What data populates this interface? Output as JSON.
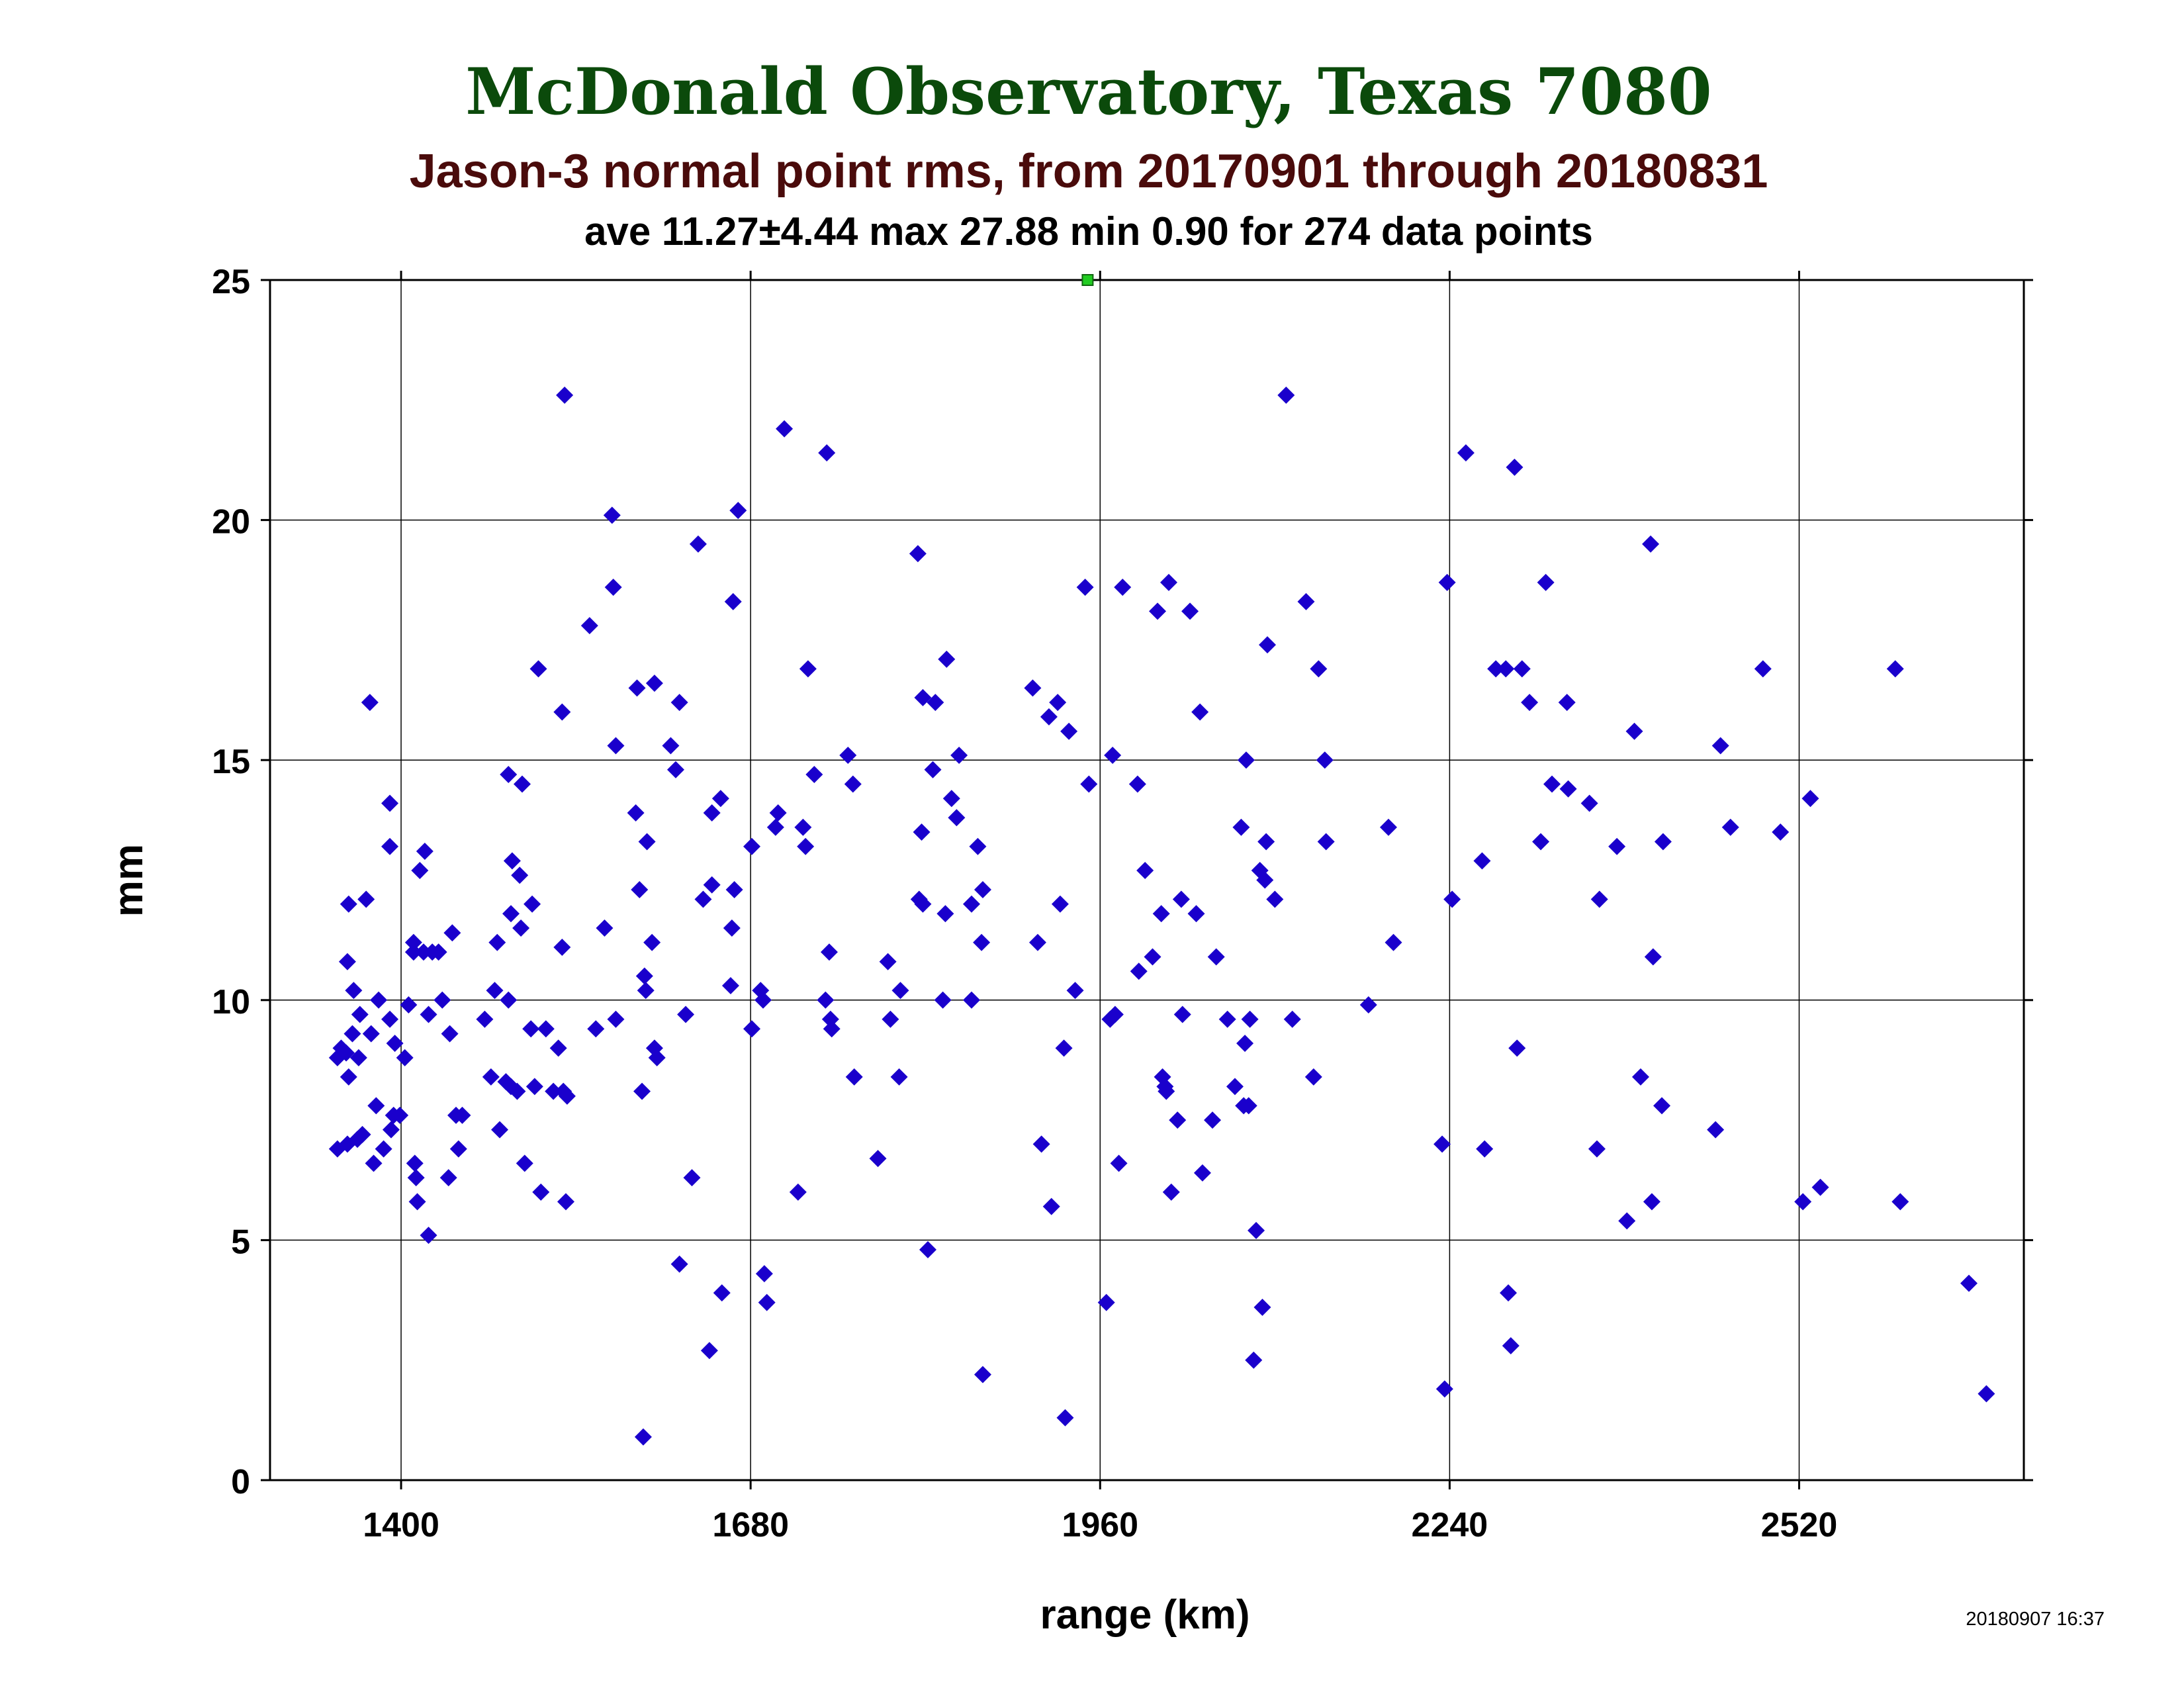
{
  "colors": {
    "title": "#0b4a0b",
    "subtitle": "#4a0b0b",
    "text": "#000000",
    "points": "#1a00cc",
    "outlier": "#22cc22",
    "grid": "#000000"
  },
  "chart_data": {
    "type": "scatter",
    "title": "McDonald Observatory, Texas 7080",
    "subtitle": "Jason-3 normal point rms, from 20170901 through 20180831",
    "stats_line": "ave 11.27±4.44 max 27.88 min 0.90 for 274 data points",
    "xlabel": "range (km)",
    "ylabel": "mm",
    "timestamp": "20180907 16:37",
    "xlim": [
      1295,
      2700
    ],
    "ylim": [
      0,
      25
    ],
    "x_ticks": [
      1400,
      1680,
      1960,
      2240,
      2520
    ],
    "y_ticks": [
      0,
      5,
      10,
      15,
      20,
      25
    ],
    "grid": true,
    "marker": "diamond",
    "outliers": [
      {
        "x": 1950,
        "y": 25
      }
    ],
    "series": [
      {
        "points": [
          [
            1349,
            6.9
          ],
          [
            1349,
            8.8
          ],
          [
            1352,
            9.0
          ],
          [
            1356,
            8.9
          ],
          [
            1357,
            7.0
          ],
          [
            1357,
            10.8
          ],
          [
            1358,
            12.0
          ],
          [
            1358,
            8.4
          ],
          [
            1361,
            9.3
          ],
          [
            1362,
            10.2
          ],
          [
            1365,
            7.1
          ],
          [
            1366,
            8.8
          ],
          [
            1367,
            9.7
          ],
          [
            1369,
            7.2
          ],
          [
            1372,
            12.1
          ],
          [
            1375,
            16.2
          ],
          [
            1376,
            9.3
          ],
          [
            1378,
            6.6
          ],
          [
            1380,
            7.8
          ],
          [
            1382,
            10.0
          ],
          [
            1386,
            6.9
          ],
          [
            1391,
            9.6
          ],
          [
            1391,
            14.1
          ],
          [
            1391,
            13.2
          ],
          [
            1392,
            7.3
          ],
          [
            1394,
            7.6
          ],
          [
            1395,
            9.1
          ],
          [
            1399,
            7.6
          ],
          [
            1403,
            8.8
          ],
          [
            1406,
            9.9
          ],
          [
            1410,
            11.0
          ],
          [
            1410,
            11.2
          ],
          [
            1411,
            6.6
          ],
          [
            1412,
            6.3
          ],
          [
            1413,
            5.8
          ],
          [
            1415,
            12.7
          ],
          [
            1418,
            11.0
          ],
          [
            1419,
            13.1
          ],
          [
            1422,
            5.1
          ],
          [
            1422,
            9.7
          ],
          [
            1425,
            11.0
          ],
          [
            1430,
            11.0
          ],
          [
            1433,
            10.0
          ],
          [
            1438,
            6.3
          ],
          [
            1439,
            9.3
          ],
          [
            1441,
            11.4
          ],
          [
            1444,
            7.6
          ],
          [
            1446,
            6.9
          ],
          [
            1449,
            7.6
          ],
          [
            1467,
            9.6
          ],
          [
            1472,
            8.4
          ],
          [
            1475,
            10.2
          ],
          [
            1477,
            11.2
          ],
          [
            1479,
            7.3
          ],
          [
            1484,
            8.3
          ],
          [
            1486,
            10.0
          ],
          [
            1486,
            14.7
          ],
          [
            1488,
            11.8
          ],
          [
            1488,
            8.2
          ],
          [
            1489,
            12.9
          ],
          [
            1493,
            8.1
          ],
          [
            1495,
            12.6
          ],
          [
            1496,
            11.5
          ],
          [
            1497,
            14.5
          ],
          [
            1499,
            6.6
          ],
          [
            1504,
            9.4
          ],
          [
            1505,
            12.0
          ],
          [
            1507,
            8.2
          ],
          [
            1510,
            16.9
          ],
          [
            1512,
            6.0
          ],
          [
            1516,
            9.4
          ],
          [
            1522,
            8.1
          ],
          [
            1526,
            9.0
          ],
          [
            1529,
            16.0
          ],
          [
            1529,
            11.1
          ],
          [
            1530,
            8.1
          ],
          [
            1531,
            22.6
          ],
          [
            1532,
            5.8
          ],
          [
            1533,
            8.0
          ],
          [
            1551,
            17.8
          ],
          [
            1556,
            9.4
          ],
          [
            1563,
            11.5
          ],
          [
            1569,
            20.1
          ],
          [
            1570,
            18.6
          ],
          [
            1572,
            15.3
          ],
          [
            1572,
            9.6
          ],
          [
            1588,
            13.9
          ],
          [
            1589,
            16.5
          ],
          [
            1591,
            12.3
          ],
          [
            1593,
            8.1
          ],
          [
            1594,
            0.9
          ],
          [
            1595,
            10.5
          ],
          [
            1596,
            10.2
          ],
          [
            1597,
            13.3
          ],
          [
            1601,
            11.2
          ],
          [
            1603,
            16.6
          ],
          [
            1603,
            9.0
          ],
          [
            1605,
            8.8
          ],
          [
            1616,
            15.3
          ],
          [
            1620,
            14.8
          ],
          [
            1623,
            16.2
          ],
          [
            1623,
            4.5
          ],
          [
            1628,
            9.7
          ],
          [
            1633,
            6.3
          ],
          [
            1638,
            19.5
          ],
          [
            1642,
            12.1
          ],
          [
            1647,
            2.7
          ],
          [
            1649,
            12.4
          ],
          [
            1649,
            13.9
          ],
          [
            1656,
            14.2
          ],
          [
            1657,
            3.9
          ],
          [
            1664,
            10.3
          ],
          [
            1665,
            11.5
          ],
          [
            1666,
            18.3
          ],
          [
            1667,
            12.3
          ],
          [
            1670,
            20.2
          ],
          [
            1681,
            9.4
          ],
          [
            1681,
            13.2
          ],
          [
            1688,
            10.2
          ],
          [
            1690,
            10.0
          ],
          [
            1691,
            4.3
          ],
          [
            1693,
            3.7
          ],
          [
            1700,
            13.6
          ],
          [
            1702,
            13.9
          ],
          [
            1707,
            21.9
          ],
          [
            1718,
            6.0
          ],
          [
            1722,
            13.6
          ],
          [
            1724,
            13.2
          ],
          [
            1726,
            16.9
          ],
          [
            1731,
            14.7
          ],
          [
            1740,
            10.0
          ],
          [
            1741,
            21.4
          ],
          [
            1743,
            11.0
          ],
          [
            1744,
            9.6
          ],
          [
            1745,
            9.4
          ],
          [
            1758,
            15.1
          ],
          [
            1762,
            14.5
          ],
          [
            1763,
            8.4
          ],
          [
            1782,
            6.7
          ],
          [
            1790,
            10.8
          ],
          [
            1792,
            9.6
          ],
          [
            1799,
            8.4
          ],
          [
            1800,
            10.2
          ],
          [
            1814,
            19.3
          ],
          [
            1815,
            12.1
          ],
          [
            1817,
            13.5
          ],
          [
            1818,
            16.3
          ],
          [
            1818,
            12.0
          ],
          [
            1822,
            4.8
          ],
          [
            1826,
            14.8
          ],
          [
            1828,
            16.2
          ],
          [
            1834,
            10.0
          ],
          [
            1836,
            11.8
          ],
          [
            1837,
            17.1
          ],
          [
            1841,
            14.2
          ],
          [
            1845,
            13.8
          ],
          [
            1847,
            15.1
          ],
          [
            1857,
            12.0
          ],
          [
            1857,
            10.0
          ],
          [
            1862,
            13.2
          ],
          [
            1865,
            11.2
          ],
          [
            1866,
            12.3
          ],
          [
            1866,
            2.2
          ],
          [
            1906,
            16.5
          ],
          [
            1910,
            11.2
          ],
          [
            1913,
            7.0
          ],
          [
            1919,
            15.9
          ],
          [
            1921,
            5.7
          ],
          [
            1926,
            16.2
          ],
          [
            1928,
            12.0
          ],
          [
            1931,
            9.0
          ],
          [
            1932,
            1.3
          ],
          [
            1935,
            15.6
          ],
          [
            1940,
            10.2
          ],
          [
            1948,
            18.6
          ],
          [
            1951,
            14.5
          ],
          [
            1965,
            3.7
          ],
          [
            1968,
            9.6
          ],
          [
            1970,
            15.1
          ],
          [
            1972,
            9.7
          ],
          [
            1975,
            6.6
          ],
          [
            1978,
            18.6
          ],
          [
            1990,
            14.5
          ],
          [
            1991,
            10.6
          ],
          [
            1996,
            12.7
          ],
          [
            2002,
            10.9
          ],
          [
            2006,
            18.1
          ],
          [
            2009,
            11.8
          ],
          [
            2010,
            8.4
          ],
          [
            2012,
            8.2
          ],
          [
            2013,
            8.1
          ],
          [
            2015,
            18.7
          ],
          [
            2017,
            6.0
          ],
          [
            2022,
            7.5
          ],
          [
            2025,
            12.1
          ],
          [
            2026,
            9.7
          ],
          [
            2032,
            18.1
          ],
          [
            2037,
            11.8
          ],
          [
            2040,
            16.0
          ],
          [
            2042,
            6.4
          ],
          [
            2050,
            7.5
          ],
          [
            2053,
            10.9
          ],
          [
            2062,
            9.6
          ],
          [
            2068,
            8.2
          ],
          [
            2073,
            13.6
          ],
          [
            2075,
            7.8
          ],
          [
            2076,
            9.1
          ],
          [
            2077,
            15.0
          ],
          [
            2079,
            7.8
          ],
          [
            2080,
            9.6
          ],
          [
            2083,
            2.5
          ],
          [
            2085,
            5.2
          ],
          [
            2088,
            12.7
          ],
          [
            2090,
            3.6
          ],
          [
            2092,
            12.5
          ],
          [
            2093,
            13.3
          ],
          [
            2094,
            17.4
          ],
          [
            2100,
            12.1
          ],
          [
            2109,
            22.6
          ],
          [
            2114,
            9.6
          ],
          [
            2125,
            18.3
          ],
          [
            2131,
            8.4
          ],
          [
            2135,
            16.9
          ],
          [
            2140,
            15.0
          ],
          [
            2141,
            13.3
          ],
          [
            2175,
            9.9
          ],
          [
            2191,
            13.6
          ],
          [
            2195,
            11.2
          ],
          [
            2234,
            7.0
          ],
          [
            2236,
            1.9
          ],
          [
            2238,
            18.7
          ],
          [
            2242,
            12.1
          ],
          [
            2253,
            21.4
          ],
          [
            2266,
            12.9
          ],
          [
            2268,
            6.9
          ],
          [
            2277,
            16.9
          ],
          [
            2285,
            16.9
          ],
          [
            2287,
            3.9
          ],
          [
            2289,
            2.8
          ],
          [
            2292,
            21.1
          ],
          [
            2294,
            9.0
          ],
          [
            2298,
            16.9
          ],
          [
            2304,
            16.2
          ],
          [
            2313,
            13.3
          ],
          [
            2317,
            18.7
          ],
          [
            2322,
            14.5
          ],
          [
            2334,
            16.2
          ],
          [
            2335,
            14.4
          ],
          [
            2352,
            14.1
          ],
          [
            2358,
            6.9
          ],
          [
            2360,
            12.1
          ],
          [
            2374,
            13.2
          ],
          [
            2382,
            5.4
          ],
          [
            2388,
            15.6
          ],
          [
            2393,
            8.4
          ],
          [
            2401,
            19.5
          ],
          [
            2402,
            5.8
          ],
          [
            2403,
            10.9
          ],
          [
            2410,
            7.8
          ],
          [
            2411,
            13.3
          ],
          [
            2453,
            7.3
          ],
          [
            2457,
            15.3
          ],
          [
            2465,
            13.6
          ],
          [
            2491,
            16.9
          ],
          [
            2505,
            13.5
          ],
          [
            2523,
            5.8
          ],
          [
            2529,
            14.2
          ],
          [
            2537,
            6.1
          ],
          [
            2597,
            16.9
          ],
          [
            2601,
            5.8
          ],
          [
            2656,
            4.1
          ],
          [
            2670,
            1.8
          ]
        ]
      }
    ]
  }
}
